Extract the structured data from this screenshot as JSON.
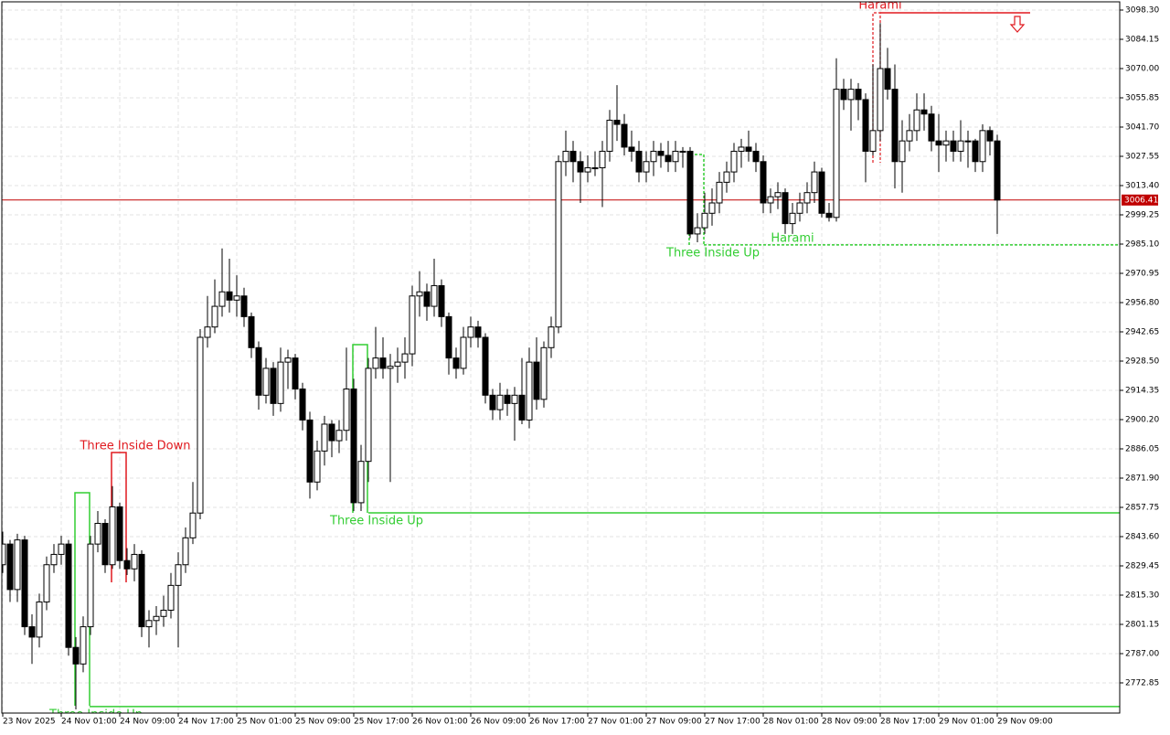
{
  "chart_data": {
    "type": "candlestick",
    "categories": [
      "23 Nov 2025",
      null,
      null,
      null,
      null,
      null,
      null,
      null,
      "24 Nov 01:00",
      null,
      null,
      null,
      null,
      null,
      null,
      null,
      "24 Nov 09:00",
      null,
      null,
      null,
      null,
      null,
      null,
      null,
      "24 Nov 17:00",
      null,
      null,
      null,
      null,
      null,
      null,
      null,
      "25 Nov 01:00",
      null,
      null,
      null,
      null,
      null,
      null,
      null,
      "25 Nov 09:00",
      null,
      null,
      null,
      null,
      null,
      null,
      null,
      "25 Nov 17:00",
      null,
      null,
      null,
      null,
      null,
      null,
      null,
      "26 Nov 01:00",
      null,
      null,
      null,
      null,
      null,
      null,
      null,
      "26 Nov 09:00",
      null,
      null,
      null,
      null,
      null,
      null,
      null,
      "26 Nov 17:00",
      null,
      null,
      null,
      null,
      null,
      null,
      null,
      "27 Nov 01:00",
      null,
      null,
      null,
      null,
      null,
      null,
      null,
      "27 Nov 09:00",
      null,
      null,
      null,
      null,
      null,
      null,
      null,
      "27 Nov 17:00",
      null,
      null,
      null,
      null,
      null,
      null,
      null,
      "28 Nov 01:00",
      null,
      null,
      null,
      null,
      null,
      null,
      null,
      "28 Nov 09:00",
      null,
      null,
      null,
      null,
      null,
      null,
      null,
      "28 Nov 17:00",
      null,
      null,
      null,
      null,
      null,
      null,
      null,
      "29 Nov 01:00",
      null,
      null,
      null,
      null,
      null,
      null,
      null,
      "29 Nov 09:00"
    ],
    "ohlc": [
      [
        2830,
        2846,
        2826,
        2840
      ],
      [
        2840,
        2842,
        2812,
        2818
      ],
      [
        2818,
        2845,
        2812,
        2842
      ],
      [
        2842,
        2844,
        2796,
        2800
      ],
      [
        2800,
        2806,
        2782,
        2795
      ],
      [
        2795,
        2816,
        2790,
        2812
      ],
      [
        2812,
        2834,
        2808,
        2830
      ],
      [
        2830,
        2840,
        2826,
        2835
      ],
      [
        2835,
        2844,
        2830,
        2840
      ],
      [
        2840,
        2842,
        2786,
        2790
      ],
      [
        2790,
        2795,
        2760,
        2782
      ],
      [
        2782,
        2805,
        2778,
        2800
      ],
      [
        2800,
        2844,
        2796,
        2840
      ],
      [
        2840,
        2856,
        2836,
        2850
      ],
      [
        2850,
        2852,
        2826,
        2830
      ],
      [
        2830,
        2868,
        2828,
        2858
      ],
      [
        2858,
        2860,
        2828,
        2832
      ],
      [
        2832,
        2838,
        2825,
        2828
      ],
      [
        2828,
        2840,
        2822,
        2835
      ],
      [
        2835,
        2837,
        2795,
        2800
      ],
      [
        2800,
        2808,
        2790,
        2803
      ],
      [
        2803,
        2810,
        2796,
        2805
      ],
      [
        2805,
        2815,
        2800,
        2808
      ],
      [
        2808,
        2826,
        2804,
        2820
      ],
      [
        2820,
        2836,
        2790,
        2830
      ],
      [
        2830,
        2848,
        2826,
        2843
      ],
      [
        2843,
        2870,
        2840,
        2855
      ],
      [
        2855,
        2944,
        2852,
        2940
      ],
      [
        2940,
        2960,
        2935,
        2945
      ],
      [
        2945,
        2968,
        2942,
        2955
      ],
      [
        2955,
        2983,
        2950,
        2962
      ],
      [
        2962,
        2978,
        2952,
        2958
      ],
      [
        2958,
        2970,
        2950,
        2960
      ],
      [
        2960,
        2964,
        2945,
        2950
      ],
      [
        2950,
        2952,
        2930,
        2935
      ],
      [
        2935,
        2938,
        2905,
        2912
      ],
      [
        2912,
        2930,
        2908,
        2925
      ],
      [
        2925,
        2928,
        2902,
        2908
      ],
      [
        2908,
        2935,
        2904,
        2928
      ],
      [
        2928,
        2934,
        2915,
        2930
      ],
      [
        2930,
        2932,
        2910,
        2915
      ],
      [
        2915,
        2918,
        2895,
        2900
      ],
      [
        2900,
        2904,
        2862,
        2870
      ],
      [
        2870,
        2890,
        2866,
        2885
      ],
      [
        2885,
        2902,
        2878,
        2898
      ],
      [
        2898,
        2900,
        2882,
        2890
      ],
      [
        2890,
        2900,
        2884,
        2895
      ],
      [
        2895,
        2935,
        2890,
        2915
      ],
      [
        2915,
        2920,
        2856,
        2860
      ],
      [
        2860,
        2888,
        2856,
        2880
      ],
      [
        2880,
        2930,
        2870,
        2925
      ],
      [
        2925,
        2945,
        2920,
        2930
      ],
      [
        2930,
        2940,
        2920,
        2925
      ],
      [
        2925,
        2932,
        2870,
        2926
      ],
      [
        2926,
        2935,
        2918,
        2928
      ],
      [
        2928,
        2940,
        2920,
        2932
      ],
      [
        2932,
        2965,
        2926,
        2960
      ],
      [
        2960,
        2972,
        2950,
        2962
      ],
      [
        2962,
        2966,
        2948,
        2955
      ],
      [
        2955,
        2978,
        2950,
        2965
      ],
      [
        2965,
        2968,
        2945,
        2950
      ],
      [
        2950,
        2952,
        2922,
        2930
      ],
      [
        2930,
        2935,
        2920,
        2925
      ],
      [
        2925,
        2945,
        2922,
        2940
      ],
      [
        2940,
        2950,
        2935,
        2945
      ],
      [
        2945,
        2948,
        2935,
        2940
      ],
      [
        2940,
        2942,
        2908,
        2912
      ],
      [
        2912,
        2915,
        2900,
        2905
      ],
      [
        2905,
        2918,
        2900,
        2912
      ],
      [
        2912,
        2915,
        2902,
        2908
      ],
      [
        2908,
        2916,
        2890,
        2912
      ],
      [
        2912,
        2930,
        2898,
        2900
      ],
      [
        2900,
        2935,
        2896,
        2928
      ],
      [
        2928,
        2940,
        2905,
        2910
      ],
      [
        2910,
        2938,
        2906,
        2935
      ],
      [
        2935,
        2950,
        2930,
        2945
      ],
      [
        2945,
        3028,
        2942,
        3025
      ],
      [
        3025,
        3040,
        3018,
        3030
      ],
      [
        3030,
        3035,
        3015,
        3025
      ],
      [
        3025,
        3030,
        3005,
        3020
      ],
      [
        3020,
        3028,
        3015,
        3022
      ],
      [
        3022,
        3030,
        3018,
        3022
      ],
      [
        3022,
        3035,
        3003,
        3030
      ],
      [
        3030,
        3050,
        3025,
        3045
      ],
      [
        3045,
        3062,
        3035,
        3043
      ],
      [
        3043,
        3048,
        3028,
        3032
      ],
      [
        3032,
        3040,
        3025,
        3030
      ],
      [
        3030,
        3035,
        3015,
        3020
      ],
      [
        3020,
        3030,
        3015,
        3025
      ],
      [
        3025,
        3035,
        3018,
        3030
      ],
      [
        3030,
        3034,
        3022,
        3028
      ],
      [
        3028,
        3035,
        3020,
        3025
      ],
      [
        3025,
        3035,
        3020,
        3030
      ],
      [
        3030,
        3032,
        3022,
        3030
      ],
      [
        3030,
        3032,
        2988,
        2990
      ],
      [
        2990,
        3000,
        2986,
        2993
      ],
      [
        2993,
        3010,
        2990,
        3000
      ],
      [
        3000,
        3012,
        2994,
        3005
      ],
      [
        3005,
        3020,
        3000,
        3015
      ],
      [
        3015,
        3025,
        3010,
        3020
      ],
      [
        3020,
        3034,
        3015,
        3030
      ],
      [
        3030,
        3036,
        3022,
        3032
      ],
      [
        3032,
        3040,
        3025,
        3030
      ],
      [
        3030,
        3034,
        3020,
        3025
      ],
      [
        3025,
        3028,
        3000,
        3005
      ],
      [
        3005,
        3012,
        3000,
        3008
      ],
      [
        3008,
        3015,
        3002,
        3010
      ],
      [
        3010,
        3012,
        2990,
        2995
      ],
      [
        2995,
        3005,
        2990,
        3000
      ],
      [
        3000,
        3010,
        2996,
        3005
      ],
      [
        3005,
        3015,
        3000,
        3010
      ],
      [
        3010,
        3025,
        3005,
        3020
      ],
      [
        3020,
        3022,
        2998,
        3000
      ],
      [
        3000,
        3005,
        2996,
        2998
      ],
      [
        2998,
        3075,
        2996,
        3060
      ],
      [
        3060,
        3065,
        3050,
        3055
      ],
      [
        3055,
        3065,
        3040,
        3060
      ],
      [
        3060,
        3063,
        3045,
        3055
      ],
      [
        3055,
        3058,
        3015,
        3030
      ],
      [
        3030,
        3072,
        3028,
        3040
      ],
      [
        3040,
        3092,
        3035,
        3070
      ],
      [
        3070,
        3080,
        3055,
        3060
      ],
      [
        3060,
        3072,
        3012,
        3025
      ],
      [
        3025,
        3045,
        3010,
        3035
      ],
      [
        3035,
        3048,
        3030,
        3040
      ],
      [
        3040,
        3058,
        3035,
        3050
      ],
      [
        3050,
        3058,
        3040,
        3048
      ],
      [
        3048,
        3052,
        3030,
        3035
      ],
      [
        3035,
        3048,
        3020,
        3033
      ],
      [
        3033,
        3040,
        3025,
        3035
      ],
      [
        3035,
        3040,
        3025,
        3030
      ],
      [
        3030,
        3045,
        3025,
        3035
      ],
      [
        3035,
        3040,
        3022,
        3035
      ],
      [
        3035,
        3036,
        3020,
        3025
      ],
      [
        3025,
        3043,
        3020,
        3040
      ],
      [
        3040,
        3042,
        3028,
        3035
      ],
      [
        3035,
        3038,
        2990,
        3006.41
      ]
    ],
    "ylim": [
      2758.25,
      3101.84
    ],
    "yticks": [
      {
        "value": 3098.3,
        "label": "3098.30"
      },
      3084.15,
      {
        "value": 3070,
        "label": "3070.00"
      },
      3055.85,
      {
        "value": 3041.7,
        "label": "3041.70"
      },
      3027.55,
      {
        "value": 3013.4,
        "label": "3013.40"
      },
      2999.25,
      {
        "value": 2985.1,
        "label": "2985.10"
      },
      2970.95,
      {
        "value": 2956.8,
        "label": "2956.80"
      },
      2942.65,
      {
        "value": 2928.5,
        "label": "2928.50"
      },
      2914.35,
      {
        "value": 2900.2,
        "label": "2900.20"
      },
      2886.05,
      {
        "value": 2871.9,
        "label": "2871.90"
      },
      2857.75,
      {
        "value": 2843.6,
        "label": "2843.60"
      },
      2829.45,
      {
        "value": 2815.3,
        "label": "2815.30"
      },
      2801.15,
      {
        "value": 2787,
        "label": "2787.00"
      },
      2772.85
    ],
    "current": 3006.41,
    "current_color": "#c00000",
    "grid": true,
    "patterns": [
      {
        "label": "Three Inside Down",
        "color": "#e0191f"
      },
      {
        "label": "Three Inside Up",
        "color": "#32cd32",
        "level": 2855.1
      },
      {
        "label": "Three Inside Up",
        "color": "#32cd32"
      },
      {
        "label": "Harami",
        "color": "#32cd32",
        "level": 2984.7
      },
      {
        "label": "Harami",
        "color": "#e0191f",
        "level": 3097.0
      },
      {
        "label": "Three Inside Up",
        "color": "#32cd32",
        "level": 2761.4
      }
    ]
  }
}
